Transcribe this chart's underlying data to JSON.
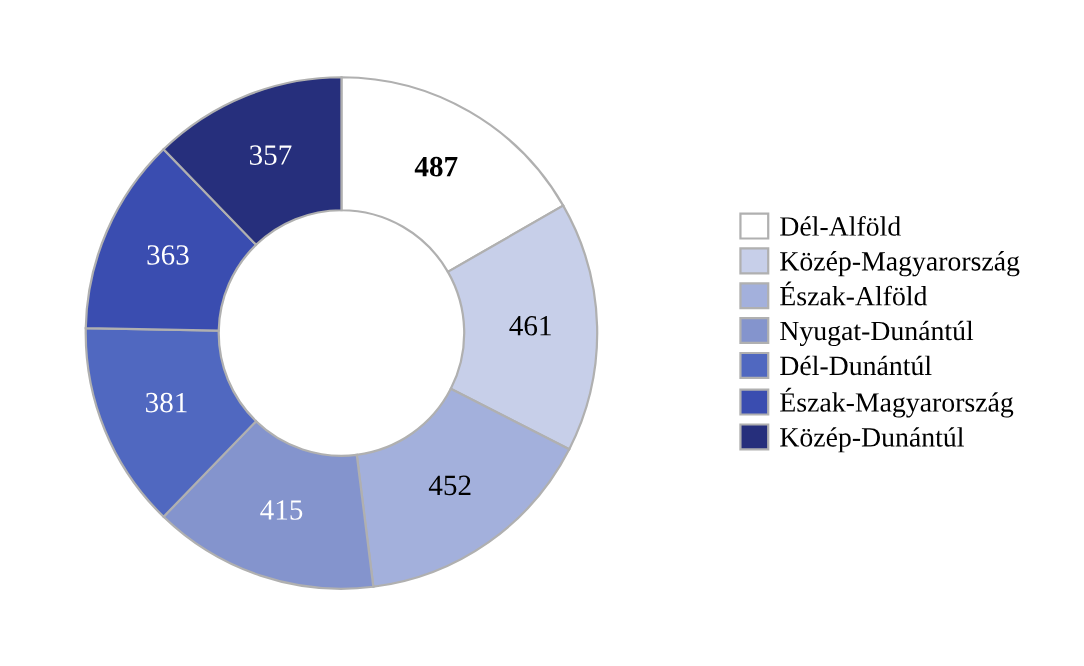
{
  "chart_data": {
    "type": "donut",
    "categories": [
      "Dél-Alföld",
      "Közép-Magyarország",
      "Észak-Alföld",
      "Nyugat-Dunántúl",
      "Dél-Dunántúl",
      "Észak-Magyarország",
      "Közép-Dunántúl"
    ],
    "values": [
      487,
      461,
      452,
      415,
      381,
      363,
      357
    ],
    "colors": [
      "#ffffff",
      "#c7cfe9",
      "#a3b0dc",
      "#8494cd",
      "#5068c0",
      "#3a4db0",
      "#262f7c"
    ],
    "data_labels": true,
    "legend": "right"
  }
}
